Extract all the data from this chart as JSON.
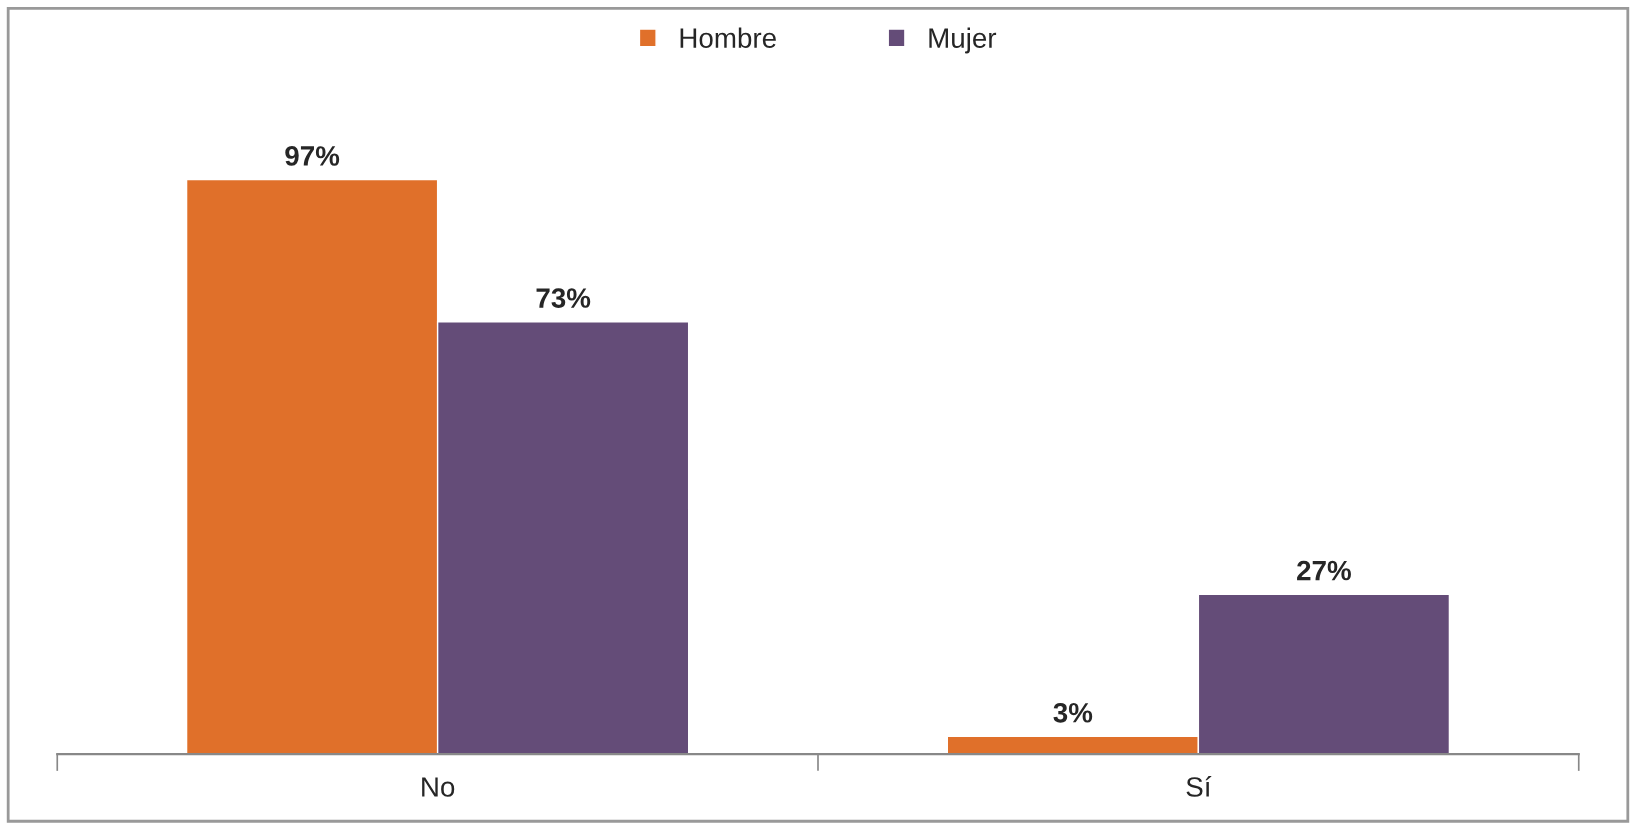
{
  "chart_data": {
    "type": "bar",
    "categories": [
      "No",
      "Sí"
    ],
    "series": [
      {
        "name": "Hombre",
        "color": "#e0702a",
        "values": [
          97,
          3
        ],
        "value_labels": [
          "97%",
          "3%"
        ]
      },
      {
        "name": "Mujer",
        "color": "#644c78",
        "values": [
          73,
          27
        ],
        "value_labels": [
          "73%",
          "27%"
        ]
      }
    ],
    "legend": "top",
    "grid": false
  }
}
